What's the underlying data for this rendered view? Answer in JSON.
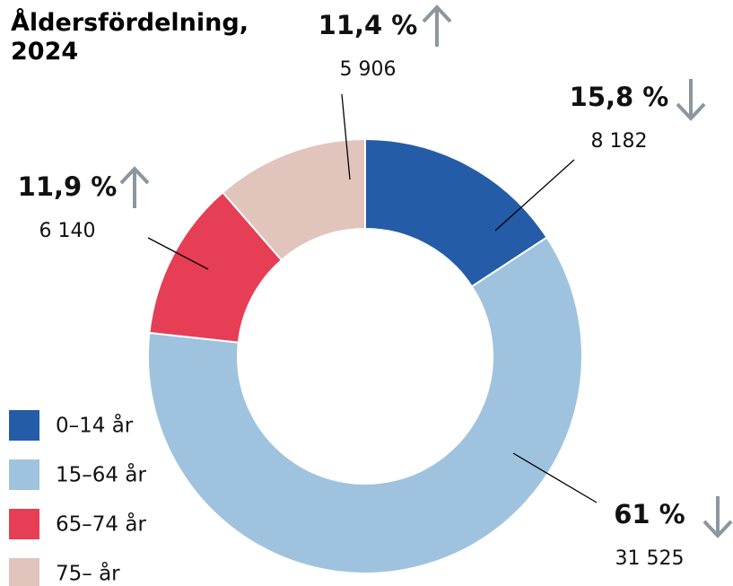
{
  "chart_data": {
    "type": "donut",
    "title": "Åldersfördelning, 2024",
    "categories": [
      "0–14 år",
      "15–64 år",
      "65–74 år",
      "75– år"
    ],
    "values": [
      15.8,
      61,
      11.9,
      11.4
    ],
    "value_labels": [
      "15,8 %",
      "61 %",
      "11,9 %",
      "11,4 %"
    ],
    "counts": [
      8182,
      31525,
      6140,
      5906
    ],
    "count_labels": [
      "8 182",
      "31 525",
      "6 140",
      "5 906"
    ],
    "trend": [
      "down",
      "down",
      "up",
      "up"
    ],
    "colors": [
      "#245ca8",
      "#9fc3de",
      "#e63e55",
      "#e1c4bb"
    ],
    "legend": "bottom-left"
  }
}
